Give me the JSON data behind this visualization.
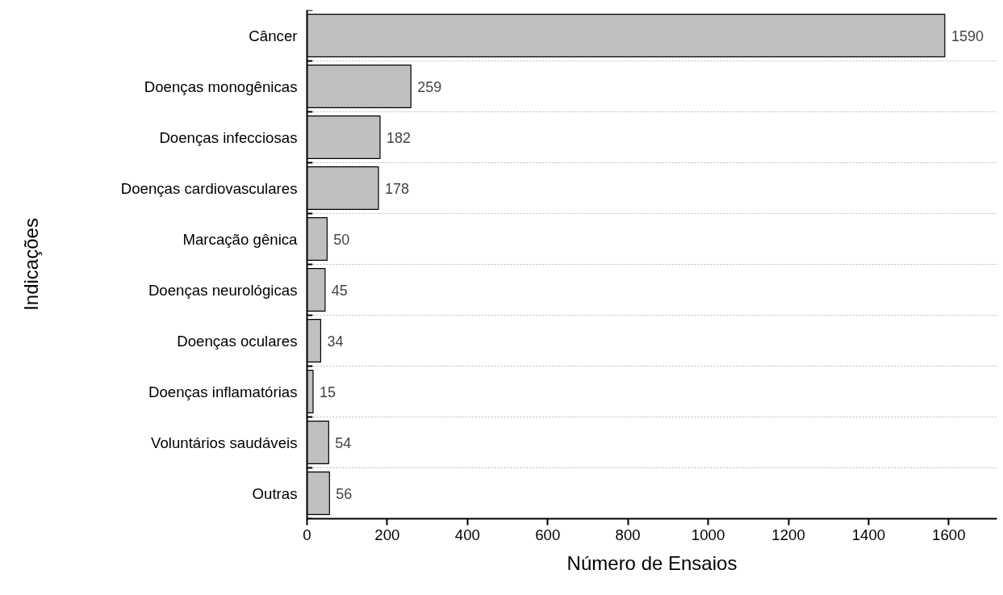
{
  "chart_data": {
    "type": "bar",
    "orientation": "horizontal",
    "xlabel": "Número de Ensaios",
    "ylabel": "Indicações",
    "categories": [
      "Câncer",
      "Doenças monogênicas",
      "Doenças infecciosas",
      "Doenças cardiovasculares",
      "Marcação gênica",
      "Doenças neurológicas",
      "Doenças oculares",
      "Doenças inflamatórias",
      "Voluntários saudáveis",
      "Outras"
    ],
    "values": [
      1590,
      259,
      182,
      178,
      50,
      45,
      34,
      15,
      54,
      56
    ],
    "color": "#c0c0c0",
    "data_labels": true,
    "grid": "y",
    "xlim": [
      0,
      1720
    ],
    "xticks": [
      0,
      200,
      400,
      600,
      800,
      1000,
      1200,
      1400,
      1600
    ]
  }
}
